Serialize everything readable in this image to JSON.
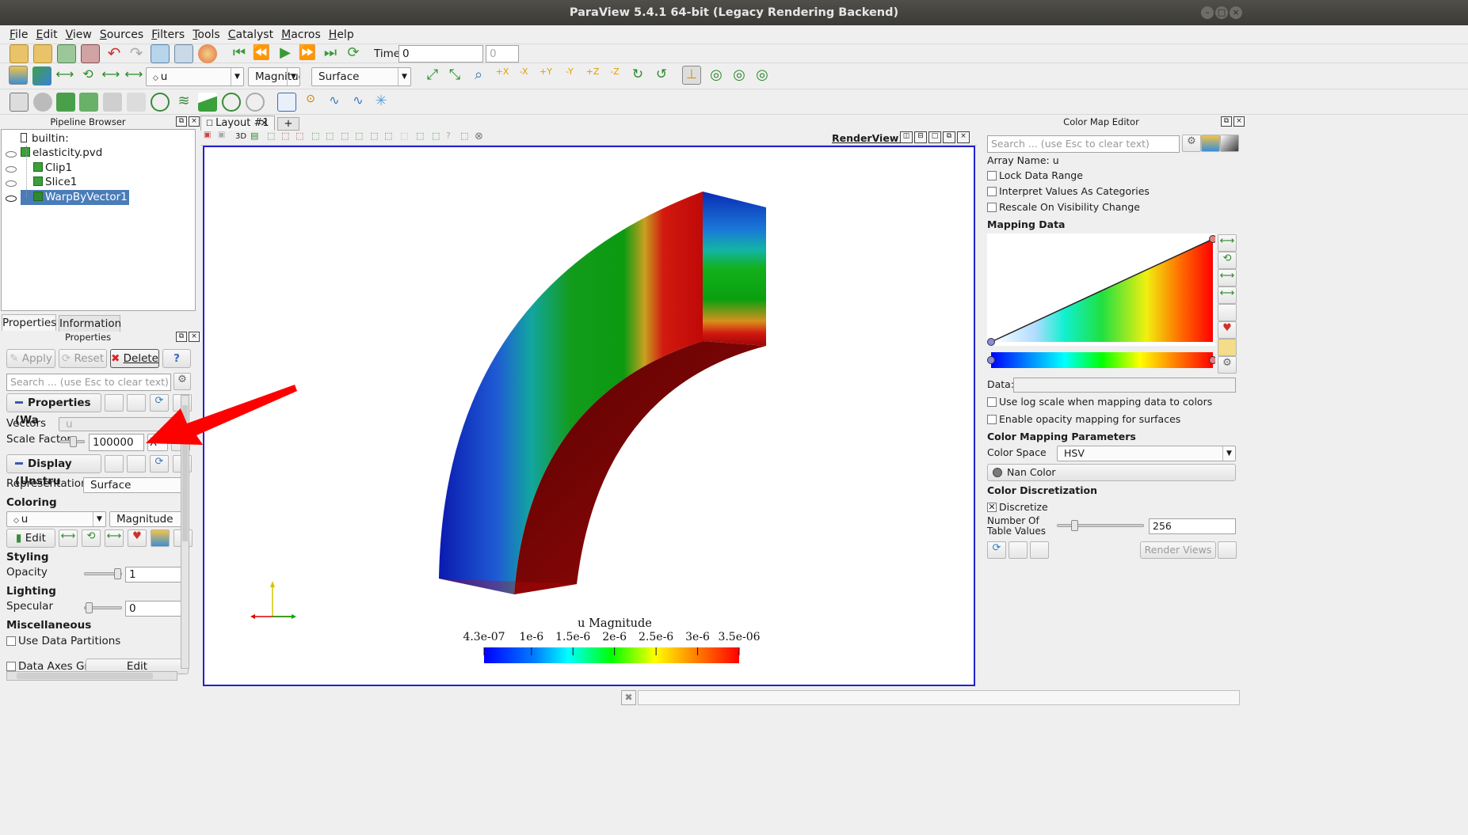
{
  "window": {
    "title": "ParaView 5.4.1 64-bit (Legacy Rendering Backend)"
  },
  "menu": [
    "File",
    "Edit",
    "View",
    "Sources",
    "Filters",
    "Tools",
    "Catalyst",
    "Macros",
    "Help"
  ],
  "toolbar": {
    "time_label": "Time:",
    "time_value": "0",
    "time_step": "0",
    "color_array": "u",
    "color_component": "Magnitude",
    "representation": "Surface"
  },
  "pipeline": {
    "title": "Pipeline Browser",
    "items": [
      {
        "label": "builtin:"
      },
      {
        "label": "elasticity.pvd"
      },
      {
        "label": "Clip1"
      },
      {
        "label": "Slice1"
      },
      {
        "label": "WarpByVector1"
      }
    ]
  },
  "properties": {
    "tabs": [
      "Properties",
      "Information"
    ],
    "title": "Properties",
    "apply": "Apply",
    "reset": "Reset",
    "delete": "Delete",
    "help": "?",
    "search_placeholder": "Search ... (use Esc to clear text)",
    "group_properties": "Properties (Wa",
    "vectors_label": "Vectors",
    "vectors_value": "u",
    "scale_factor_label": "Scale Factor",
    "scale_factor_value": "100000",
    "scale_factor_x": "X",
    "group_display": "Display (Unstru",
    "representation_label": "Representation",
    "representation_value": "Surface",
    "coloring_title": "Coloring",
    "coloring_array": "u",
    "coloring_component": "Magnitude",
    "edit": "Edit",
    "styling_title": "Styling",
    "opacity_label": "Opacity",
    "opacity_value": "1",
    "opacity_level": 1.0,
    "lighting_title": "Lighting",
    "specular_label": "Specular",
    "specular_value": "0",
    "misc_title": "Miscellaneous",
    "use_data_partitions": "Use Data Partitions",
    "data_axes_grid": "Data Axes Grid",
    "data_axes_edit": "Edit"
  },
  "layout": {
    "tab": "Layout #1",
    "close": "×",
    "add": "+",
    "view_name": "RenderView1",
    "mode_3d": "3D"
  },
  "colorbar": {
    "title": "u Magnitude",
    "ticks": [
      "4.3e-07",
      "1e-6",
      "1.5e-6",
      "2e-6",
      "2.5e-6",
      "3e-6",
      "3.5e-06"
    ],
    "range": [
      4.3e-07,
      3.5e-06
    ]
  },
  "colormap": {
    "title": "Color Map Editor",
    "search_placeholder": "Search ... (use Esc to clear text)",
    "array_name": "Array Name: u",
    "lock_data_range": "Lock Data Range",
    "interpret_categories": "Interpret Values As Categories",
    "rescale_visibility": "Rescale On Visibility Change",
    "mapping_data": "Mapping Data",
    "data_label": "Data:",
    "log_scale": "Use log scale when mapping data to colors",
    "enable_opacity": "Enable opacity mapping for surfaces",
    "params_title": "Color Mapping Parameters",
    "color_space_label": "Color Space",
    "color_space_value": "HSV",
    "nan_color": "Nan Color",
    "discretization_title": "Color Discretization",
    "discretize": "Discretize",
    "num_table_values_label": "Number Of\nTable Values",
    "num_table_values": "256",
    "table_values_level": 0.17,
    "render_views": "Render Views"
  },
  "colors": {
    "titlebar": "#3b3a36",
    "selection": "#4a7cb8",
    "view_border": "#2222cc",
    "arrow": "#ff0000"
  }
}
